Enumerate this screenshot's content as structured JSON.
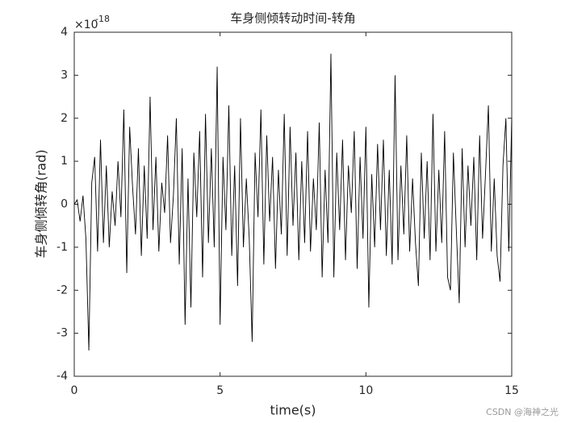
{
  "chart_data": {
    "type": "line",
    "title": "车身侧倾转动时间-转角",
    "xlabel": "time(s)",
    "ylabel": "车身侧倾转角(rad)",
    "y_exponent_base": "×10",
    "y_exponent": "-18",
    "watermark": "CSDN @海神之光",
    "color": "#000000",
    "xlim": [
      0,
      15
    ],
    "xticks": [
      0,
      5,
      10,
      15
    ],
    "ylim": [
      -4,
      4
    ],
    "yticks": [
      -4,
      -3,
      -2,
      -1,
      0,
      1,
      2,
      3,
      4
    ],
    "grid": false,
    "x": [
      0,
      0.1,
      0.2,
      0.3,
      0.4,
      0.5,
      0.6,
      0.7,
      0.8,
      0.9,
      1,
      1.1,
      1.2,
      1.3,
      1.4,
      1.5,
      1.6,
      1.7,
      1.8,
      1.9,
      2,
      2.1,
      2.2,
      2.3,
      2.4,
      2.5,
      2.6,
      2.7,
      2.8,
      2.9,
      3,
      3.1,
      3.2,
      3.3,
      3.4,
      3.5,
      3.6,
      3.7,
      3.8,
      3.9,
      4,
      4.1,
      4.2,
      4.3,
      4.4,
      4.5,
      4.6,
      4.7,
      4.8,
      4.9,
      5,
      5.1,
      5.2,
      5.3,
      5.4,
      5.5,
      5.6,
      5.7,
      5.8,
      5.9,
      6,
      6.1,
      6.2,
      6.3,
      6.4,
      6.5,
      6.6,
      6.7,
      6.8,
      6.9,
      7,
      7.1,
      7.2,
      7.3,
      7.4,
      7.5,
      7.6,
      7.7,
      7.8,
      7.9,
      8,
      8.1,
      8.2,
      8.3,
      8.4,
      8.5,
      8.6,
      8.7,
      8.8,
      8.9,
      9,
      9.1,
      9.2,
      9.3,
      9.4,
      9.5,
      9.6,
      9.7,
      9.8,
      9.9,
      10,
      10.1,
      10.2,
      10.3,
      10.4,
      10.5,
      10.6,
      10.7,
      10.8,
      10.9,
      11,
      11.1,
      11.2,
      11.3,
      11.4,
      11.5,
      11.6,
      11.7,
      11.8,
      11.9,
      12,
      12.1,
      12.2,
      12.3,
      12.4,
      12.5,
      12.6,
      12.7,
      12.8,
      12.9,
      13,
      13.1,
      13.2,
      13.3,
      13.4,
      13.5,
      13.6,
      13.7,
      13.8,
      13.9,
      14,
      14.1,
      14.2,
      14.3,
      14.4,
      14.5,
      14.6,
      14.7,
      14.8,
      14.9,
      15
    ],
    "values": [
      0,
      0.1,
      -0.4,
      0.2,
      -0.8,
      -3.4,
      0.5,
      1.1,
      -1.1,
      1.5,
      -0.9,
      0.9,
      -1.0,
      0.3,
      -0.5,
      1.0,
      -0.3,
      2.2,
      -1.6,
      1.8,
      0.4,
      -0.7,
      1.3,
      -1.2,
      0.9,
      -0.8,
      2.5,
      -0.6,
      1.1,
      -1.1,
      0.5,
      -0.2,
      1.6,
      -0.9,
      0.2,
      2.0,
      -1.4,
      1.3,
      -2.8,
      0.6,
      -2.4,
      1.2,
      -0.3,
      1.7,
      -1.7,
      2.1,
      -0.9,
      1.3,
      -1.0,
      3.2,
      -2.8,
      1.1,
      -0.6,
      2.3,
      -1.2,
      0.9,
      -1.9,
      2.0,
      -1.0,
      0.6,
      -0.8,
      -3.2,
      1.2,
      -0.3,
      2.2,
      -1.4,
      1.6,
      -0.4,
      1.1,
      -1.5,
      0.8,
      -0.7,
      2.1,
      -1.2,
      1.8,
      -0.5,
      1.2,
      -1.3,
      1.0,
      -0.9,
      1.7,
      -1.1,
      0.6,
      -0.6,
      1.9,
      -1.7,
      0.8,
      -0.9,
      3.5,
      -1.7,
      1.2,
      -0.6,
      1.5,
      -1.3,
      0.9,
      -0.2,
      1.7,
      -1.5,
      1.1,
      -0.8,
      1.8,
      -2.4,
      0.7,
      -1.0,
      1.4,
      -0.6,
      1.5,
      -1.2,
      0.8,
      -1.4,
      3.0,
      -1.3,
      0.9,
      -0.7,
      1.6,
      -1.1,
      0.6,
      -0.9,
      -1.9,
      1.2,
      -0.8,
      1.0,
      -1.3,
      2.1,
      -1.1,
      0.8,
      -0.9,
      1.7,
      -1.7,
      -2.0,
      1.2,
      -0.6,
      -2.3,
      1.3,
      -1.0,
      0.9,
      -0.5,
      1.1,
      -1.3,
      1.6,
      -0.8,
      0.7,
      2.3,
      -1.1,
      0.6,
      -1.2,
      -1.8,
      0.9,
      2.0,
      -1.1,
      2.0
    ]
  }
}
